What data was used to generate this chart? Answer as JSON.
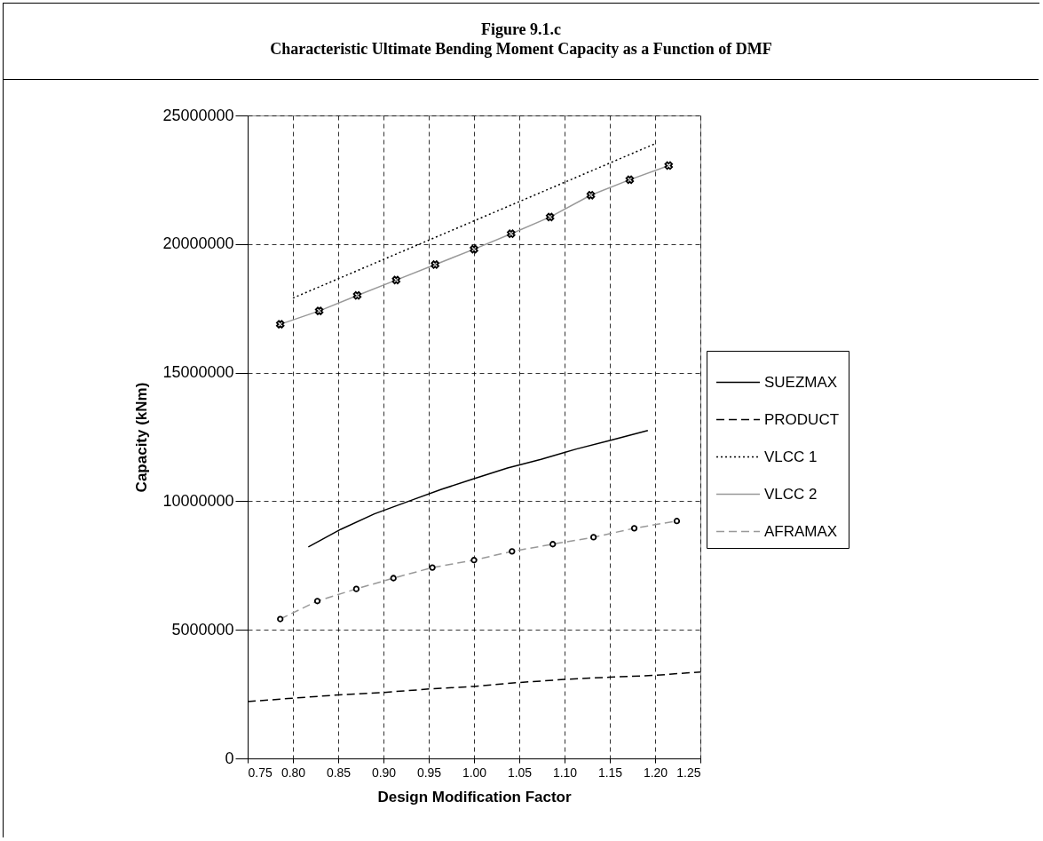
{
  "chart_data": {
    "type": "line",
    "title": "Figure 9.1.c",
    "subtitle": "Characteristic Ultimate Bending Moment Capacity as a Function of DMF",
    "xlabel": "Design Modification Factor",
    "ylabel": "Capacity (kNm)",
    "xlim": [
      0.75,
      1.25
    ],
    "xticks": [
      0.75,
      {
        "value": 0.8,
        "label": "0.80"
      },
      0.85,
      {
        "value": 0.9,
        "label": "0.90"
      },
      0.95,
      {
        "value": 1,
        "label": "1.00"
      },
      1.05,
      {
        "value": 1.1,
        "label": "1.10"
      },
      1.15,
      {
        "value": 1.2,
        "label": "1.20"
      },
      1.25
    ],
    "ylim": [
      0,
      25000000
    ],
    "yticks": [
      0,
      5000000,
      10000000,
      15000000,
      20000000,
      25000000
    ],
    "grid": true,
    "legend": "right",
    "series": [
      {
        "name": "SUEZMAX",
        "color": "#000000",
        "line_style": "solid",
        "marker": "none",
        "x": [
          0.817,
          0.853,
          0.89,
          0.934,
          0.964,
          1.0,
          1.037,
          1.074,
          1.113,
          1.15,
          1.192
        ],
        "values": [
          8220000,
          8910000,
          9510000,
          10080000,
          10460000,
          10880000,
          11290000,
          11630000,
          12030000,
          12360000,
          12750000
        ]
      },
      {
        "name": "PRODUCT",
        "color": "#000000",
        "line_style": "dashed",
        "marker": "none",
        "x": [
          0.75,
          0.795,
          0.846,
          0.898,
          0.951,
          1.0,
          1.049,
          1.1,
          1.15,
          1.2,
          1.25
        ],
        "values": [
          2210000,
          2330000,
          2460000,
          2560000,
          2700000,
          2800000,
          2950000,
          3070000,
          3160000,
          3230000,
          3360000
        ]
      },
      {
        "name": "VLCC 1",
        "color": "#000000",
        "line_style": "dotted",
        "marker": "none",
        "x": [
          0.8,
          0.9,
          1.0,
          1.1,
          1.2
        ],
        "values": [
          17900000,
          19400000,
          20900000,
          22400000,
          23900000
        ]
      },
      {
        "name": "VLCC 2",
        "color": "#999999",
        "line_style": "solid",
        "marker": "cross",
        "x": [
          0.786,
          0.829,
          0.871,
          0.914,
          0.957,
          1.0,
          1.041,
          1.084,
          1.129,
          1.172,
          1.215
        ],
        "values": [
          16880000,
          17400000,
          18000000,
          18600000,
          19200000,
          19800000,
          20400000,
          21050000,
          21900000,
          22500000,
          23050000
        ]
      },
      {
        "name": "AFRAMAX",
        "color": "#999999",
        "line_style": "dashed",
        "marker": "circle",
        "x": [
          0.786,
          0.827,
          0.87,
          0.911,
          0.954,
          1.0,
          1.042,
          1.087,
          1.132,
          1.177,
          1.224
        ],
        "values": [
          5420000,
          6120000,
          6590000,
          7010000,
          7420000,
          7710000,
          8050000,
          8330000,
          8600000,
          8950000,
          9230000
        ]
      }
    ]
  }
}
